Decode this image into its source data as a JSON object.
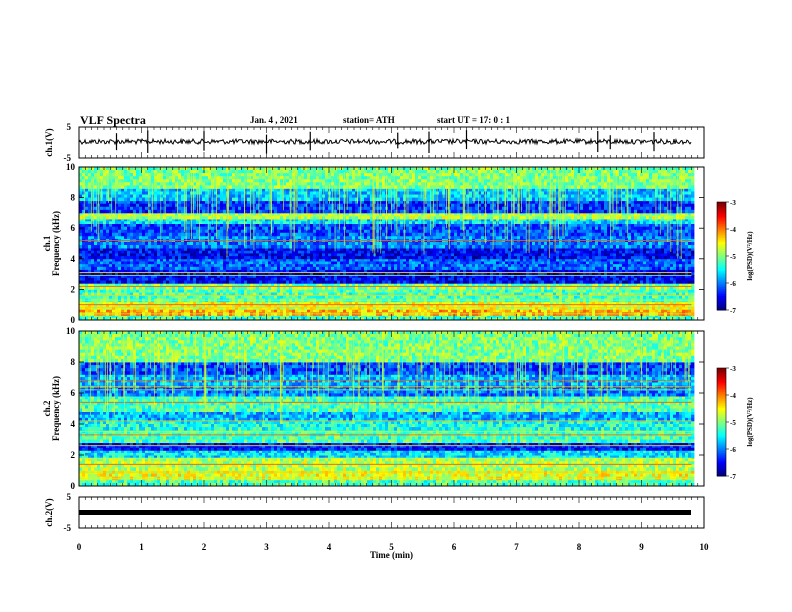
{
  "header": {
    "title": "VLF Spectra",
    "date": "Jan. 4 , 2021",
    "station": "station= ATH",
    "start": "start UT =   17: 0  : 1"
  },
  "chart_data": {
    "type": "heatmap",
    "xlabel": "Time (min)",
    "xlim": [
      0,
      10
    ],
    "x_ticks": [
      "0",
      "1",
      "2",
      "3",
      "4",
      "5",
      "6",
      "7",
      "8",
      "9",
      "10"
    ],
    "data_end_min": 9.8,
    "panels": [
      {
        "kind": "waveform",
        "ylabel": "ch.1(V)",
        "ylim": [
          -5,
          5
        ],
        "y_ticks": [
          "5",
          "-5"
        ],
        "baseline_V": 0.3,
        "spike_times_min": [
          0.6,
          1.1,
          2.0,
          3.0,
          3.7,
          5.1,
          5.6,
          6.2,
          8.3,
          8.5,
          9.2
        ]
      },
      {
        "kind": "spectrogram",
        "ylabel_line1": "ch.1",
        "ylabel_line2": "Frequency (kHz)",
        "ylim": [
          0,
          10
        ],
        "y_ticks": [
          "0",
          "2",
          "4",
          "6",
          "8",
          "10"
        ],
        "colorbar": {
          "label": "log(PSD)(V²/Hz)",
          "range": [
            -7,
            -3
          ],
          "ticks": [
            "-3",
            "-4",
            "-5",
            "-6",
            "-7"
          ]
        },
        "bands": [
          {
            "f0": 0.0,
            "f1": 0.3,
            "level": 0.45
          },
          {
            "f0": 0.3,
            "f1": 0.7,
            "level": 0.7
          },
          {
            "f0": 0.7,
            "f1": 1.2,
            "level": 0.6
          },
          {
            "f0": 1.2,
            "f1": 2.0,
            "level": 0.45
          },
          {
            "f0": 2.0,
            "f1": 2.4,
            "level": 0.5
          },
          {
            "f0": 2.4,
            "f1": 3.3,
            "level": 0.12
          },
          {
            "f0": 3.3,
            "f1": 4.0,
            "level": 0.22
          },
          {
            "f0": 4.0,
            "f1": 4.7,
            "level": 0.12
          },
          {
            "f0": 4.7,
            "f1": 5.5,
            "level": 0.25
          },
          {
            "f0": 5.5,
            "f1": 6.3,
            "level": 0.2
          },
          {
            "f0": 6.3,
            "f1": 6.6,
            "level": 0.35
          },
          {
            "f0": 6.6,
            "f1": 7.0,
            "level": 0.55
          },
          {
            "f0": 7.0,
            "f1": 7.8,
            "level": 0.18
          },
          {
            "f0": 7.8,
            "f1": 8.6,
            "level": 0.32
          },
          {
            "f0": 8.6,
            "f1": 10.0,
            "level": 0.5
          }
        ],
        "lines_kHz": [
          0.4,
          0.8,
          1.0,
          1.3,
          1.6,
          2.2,
          2.9,
          3.1,
          5.2,
          6.8
        ]
      },
      {
        "kind": "spectrogram",
        "ylabel_line1": "ch.2",
        "ylabel_line2": "Frequency (kHz)",
        "ylim": [
          0,
          10
        ],
        "y_ticks": [
          "0",
          "2",
          "4",
          "6",
          "8",
          "10"
        ],
        "colorbar": {
          "label": "log(PSD)(V²/Hz)",
          "range": [
            -7,
            -3
          ],
          "ticks": [
            "-3",
            "-4",
            "-5",
            "-6",
            "-7"
          ]
        },
        "bands": [
          {
            "f0": 0.0,
            "f1": 0.4,
            "level": 0.45
          },
          {
            "f0": 0.4,
            "f1": 1.0,
            "level": 0.6
          },
          {
            "f0": 1.0,
            "f1": 1.8,
            "level": 0.55
          },
          {
            "f0": 1.8,
            "f1": 2.3,
            "level": 0.35
          },
          {
            "f0": 2.3,
            "f1": 2.8,
            "level": 0.15
          },
          {
            "f0": 2.8,
            "f1": 3.6,
            "level": 0.45
          },
          {
            "f0": 3.6,
            "f1": 4.2,
            "level": 0.4
          },
          {
            "f0": 4.2,
            "f1": 4.8,
            "level": 0.3
          },
          {
            "f0": 4.8,
            "f1": 5.8,
            "level": 0.45
          },
          {
            "f0": 5.8,
            "f1": 6.5,
            "level": 0.25
          },
          {
            "f0": 6.5,
            "f1": 7.2,
            "level": 0.3
          },
          {
            "f0": 7.2,
            "f1": 8.0,
            "level": 0.2
          },
          {
            "f0": 8.0,
            "f1": 10.0,
            "level": 0.5
          }
        ],
        "lines_kHz": [
          0.5,
          0.9,
          1.4,
          1.8,
          2.6,
          3.3,
          3.5,
          4.2,
          5.4,
          6.2,
          6.4,
          6.8
        ]
      },
      {
        "kind": "waveform",
        "ylabel": "ch.2(V)",
        "ylim": [
          -5,
          5
        ],
        "y_ticks": [
          "5",
          "-5"
        ],
        "baseline_V": 0.0
      }
    ]
  },
  "colors": {
    "waveform": "#000000",
    "colormap": [
      "#00007f",
      "#0000ff",
      "#0080ff",
      "#00ffff",
      "#80ff80",
      "#ffff00",
      "#ff8000",
      "#ff0000",
      "#7f0000"
    ]
  }
}
